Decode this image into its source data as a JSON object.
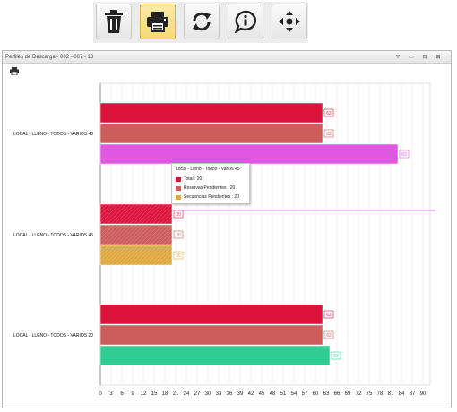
{
  "toolbar": {
    "buttons": [
      {
        "name": "delete-button",
        "icon": "trash-icon",
        "active": false
      },
      {
        "name": "print-button",
        "icon": "printer-icon",
        "active": true
      },
      {
        "name": "refresh-button",
        "icon": "refresh-icon",
        "active": false
      },
      {
        "name": "info-button",
        "icon": "info-bubble-icon",
        "active": false
      },
      {
        "name": "move-button",
        "icon": "move-arrows-icon",
        "active": false
      }
    ]
  },
  "panel": {
    "title": "Perfiles de Descarga - 002 - 007 - 13",
    "controls": [
      "▽",
      "▭",
      "⊡",
      "⊠"
    ]
  },
  "tooltip": {
    "title": "Local - Lleno - Todos - Varios 45",
    "rows": [
      {
        "color": "#dc143c",
        "text": "Total : 20"
      },
      {
        "color": "#cd5c5c",
        "text": "Reservas Pendientes : 20"
      },
      {
        "color": "#e0a840",
        "text": "Secuencias Pendientes : 20"
      }
    ]
  },
  "chart_data": {
    "type": "bar",
    "orientation": "horizontal",
    "categories": [
      "LOCAL - LLENO - TODOS - VARIOS 40",
      "LOCAL - LLENO - TODOS - VARIOS 45",
      "LOCAL - LLENO - TODOS - VARIOS 20"
    ],
    "series": [
      {
        "values": [
          62,
          20,
          62
        ],
        "colors": [
          "#dc143c",
          "#dc143c",
          "#dc143c"
        ]
      },
      {
        "values": [
          62,
          20,
          62
        ],
        "colors": [
          "#cd5c5c",
          "#cd5c5c",
          "#cd5c5c"
        ]
      },
      {
        "values": [
          83,
          20,
          64
        ],
        "colors": [
          "#e058e0",
          "#e0a840",
          "#30cc96"
        ]
      }
    ],
    "xlim": [
      0,
      92
    ],
    "xticks": [
      0,
      3,
      6,
      9,
      12,
      15,
      18,
      21,
      24,
      27,
      30,
      33,
      36,
      39,
      42,
      45,
      48,
      51,
      54,
      57,
      60,
      63,
      66,
      69,
      72,
      75,
      78,
      81,
      84,
      87,
      90
    ],
    "grid": true,
    "hatched_category_index": 1
  }
}
